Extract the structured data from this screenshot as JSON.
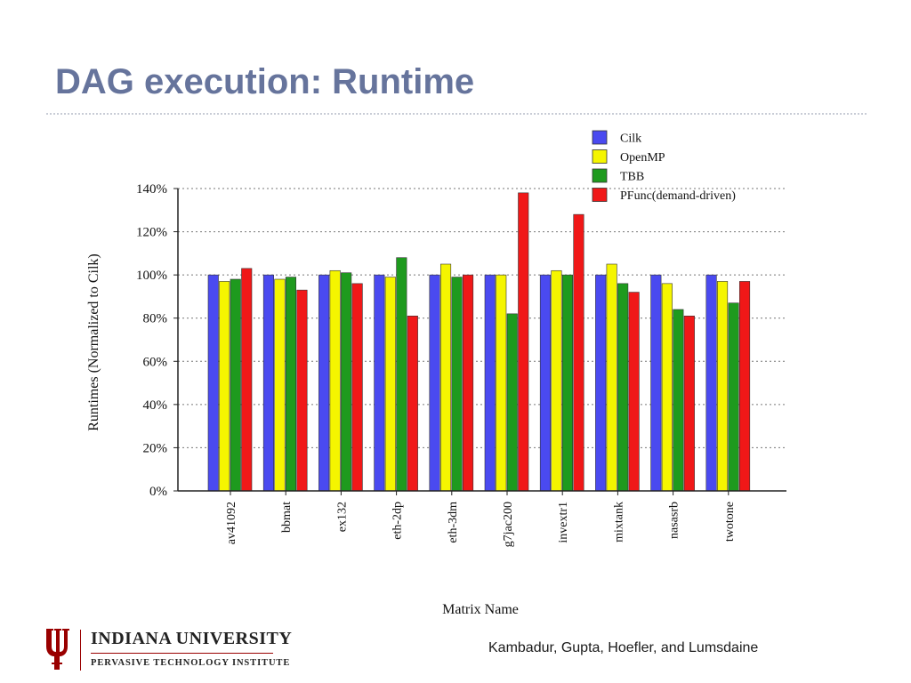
{
  "slide": {
    "title": "DAG execution: Runtime",
    "author": "Kambadur, Gupta, Hoefler, and Lumsdaine"
  },
  "logo": {
    "name": "INDIANA UNIVERSITY",
    "subtitle": "PERVASIVE TECHNOLOGY INSTITUTE",
    "color": "#990000"
  },
  "colors": {
    "title": "#66749c",
    "Cilk": "#4a4af0",
    "OpenMP": "#f5f500",
    "TBB": "#1e9a1e",
    "PFunc": "#f01818"
  },
  "chart_data": {
    "type": "bar",
    "ylabel": "Runtimes (Normalized to Cilk)",
    "xlabel": "Matrix Name",
    "ylim": [
      0,
      140
    ],
    "yticks": [
      "0%",
      "20%",
      "40%",
      "60%",
      "80%",
      "100%",
      "120%",
      "140%"
    ],
    "grid": true,
    "legend_position": "top-right",
    "categories": [
      "av41092",
      "bbmat",
      "ex132",
      "eth-2dp",
      "eth-3dm",
      "g7jac200",
      "invextr1",
      "mixtank",
      "nasasrb",
      "twotone"
    ],
    "series": [
      {
        "name": "Cilk",
        "values": [
          100,
          100,
          100,
          100,
          100,
          100,
          100,
          100,
          100,
          100
        ]
      },
      {
        "name": "OpenMP",
        "values": [
          97,
          98,
          102,
          99,
          105,
          100,
          102,
          105,
          96,
          97
        ]
      },
      {
        "name": "TBB",
        "values": [
          98,
          99,
          101,
          108,
          99,
          82,
          100,
          96,
          84,
          87
        ]
      },
      {
        "name": "PFunc(demand-driven)",
        "values": [
          103,
          93,
          96,
          81,
          100,
          138,
          128,
          92,
          81,
          97
        ]
      }
    ]
  }
}
